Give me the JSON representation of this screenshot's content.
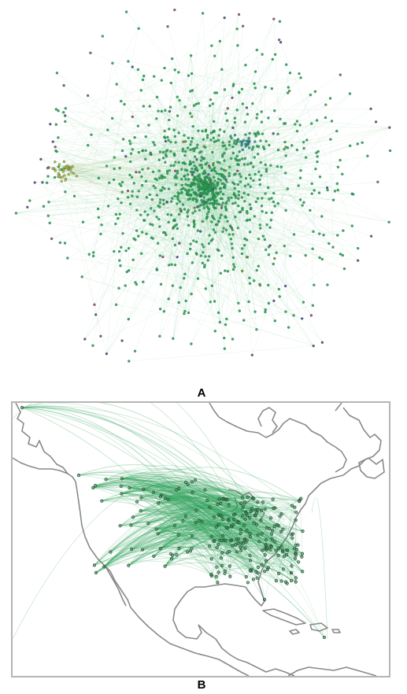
{
  "panels": {
    "a": {
      "label": "A"
    },
    "b": {
      "label": "B"
    }
  },
  "colors": {
    "main_community": "#2fa35a",
    "node_edge": "#1d6b3a",
    "edge_line": "#6cc48a",
    "cluster_yellow": "#c8b04a",
    "cluster_blue": "#3c7fa6",
    "node_purple": "#6a3d9a",
    "node_magenta": "#b03a7a",
    "node_olive": "#8a8a3a",
    "map_coastline": "#8a8a8a",
    "map_frame": "#b5b5b5",
    "airport_node": "#3a8a55"
  }
}
